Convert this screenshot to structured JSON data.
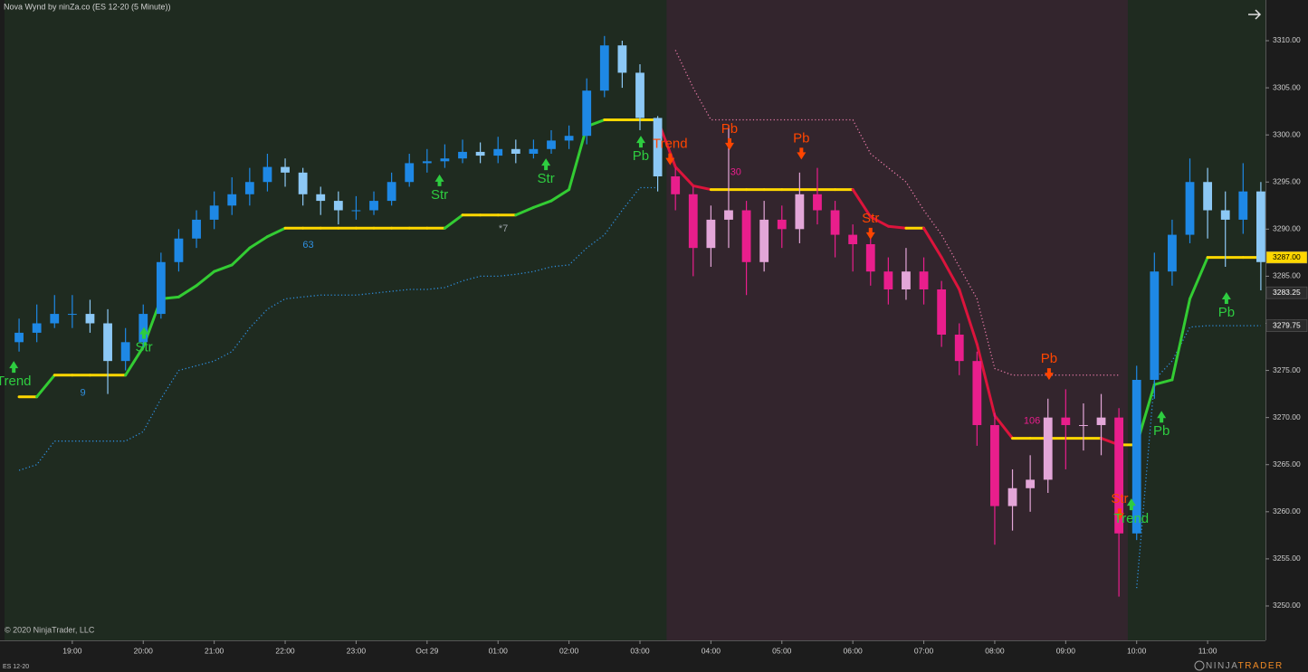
{
  "chart_data": {
    "type": "candlestick",
    "title": "Nova Wynd by ninZa.co (ES 12-20 (5 Minute))",
    "copyright": "© 2020 NinjaTrader, LLC",
    "instrument": "ES 12-20",
    "brand": [
      "NINJA",
      "TRADER"
    ],
    "xlim": [
      -0.82,
      70.26
    ],
    "xticks": [
      {
        "value": 3,
        "label": "19:00"
      },
      {
        "value": 7,
        "label": "20:00"
      },
      {
        "value": 11,
        "label": "21:00"
      },
      {
        "value": 15,
        "label": "22:00"
      },
      {
        "value": 19,
        "label": "23:00"
      },
      {
        "value": 23,
        "label": "Oct 29"
      },
      {
        "value": 27,
        "label": "01:00"
      },
      {
        "value": 31,
        "label": "02:00"
      },
      {
        "value": 35,
        "label": "03:00"
      },
      {
        "value": 39,
        "label": "04:00"
      },
      {
        "value": 43,
        "label": "05:00"
      },
      {
        "value": 47,
        "label": "06:00"
      },
      {
        "value": 51,
        "label": "07:00"
      },
      {
        "value": 55,
        "label": "08:00"
      },
      {
        "value": 59,
        "label": "09:00"
      },
      {
        "value": 63,
        "label": "10:00"
      },
      {
        "value": 67,
        "label": "11:00"
      }
    ],
    "ylim": [
      3246.35,
      3314.32
    ],
    "yticks": [
      {
        "value": 3250,
        "label": "3250.00"
      },
      {
        "value": 3255,
        "label": "3255.00"
      },
      {
        "value": 3260,
        "label": "3260.00"
      },
      {
        "value": 3265,
        "label": "3265.00"
      },
      {
        "value": 3270,
        "label": "3270.00"
      },
      {
        "value": 3275,
        "label": "3275.00"
      },
      {
        "value": 3280,
        "label": "3280.00"
      },
      {
        "value": 3285,
        "label": "3285.00"
      },
      {
        "value": 3290,
        "label": "3290.00"
      },
      {
        "value": 3295,
        "label": "3295.00"
      },
      {
        "value": 3300,
        "label": "3300.00"
      },
      {
        "value": 3305,
        "label": "3305.00"
      },
      {
        "value": 3310,
        "label": "3310.00"
      }
    ],
    "open": [
      3278,
      3279,
      3280,
      3281,
      3281,
      3280,
      3276,
      3278,
      3281,
      3286.5,
      3289,
      3291,
      3292.5,
      3293.7,
      3295,
      3296.6,
      3296,
      3293.7,
      3293,
      3292,
      3292,
      3293,
      3295,
      3297,
      3297.2,
      3297.5,
      3298.2,
      3297.8,
      3298.5,
      3298,
      3298.5,
      3299.4,
      3299.9,
      3304.7,
      3309.5,
      3306.6,
      3301.8,
      3295.6,
      3293.7,
      3288,
      3291,
      3292,
      3286.5,
      3291,
      3290,
      3293.7,
      3292,
      3289.4,
      3288.4,
      3285.5,
      3283.6,
      3285.5,
      3283.6,
      3278.8,
      3276,
      3269.2,
      3260.6,
      3262.5,
      3263.4,
      3270,
      3269.2,
      3269.2,
      3270,
      3257.7,
      3274,
      3285.5,
      3289.4,
      3295,
      3292,
      3291,
      3294
    ],
    "high": [
      3280.5,
      3282,
      3283,
      3283,
      3282.5,
      3281.5,
      3279.5,
      3282,
      3287.5,
      3290,
      3292,
      3294,
      3295.5,
      3296.5,
      3298,
      3297.5,
      3296.5,
      3294.5,
      3294,
      3293.5,
      3294,
      3296,
      3298,
      3298.5,
      3299,
      3299.5,
      3299.2,
      3299.8,
      3299.5,
      3299.5,
      3300.5,
      3301,
      3306,
      3310.5,
      3310,
      3307.5,
      3302,
      3296.5,
      3294.5,
      3292.5,
      3301,
      3293,
      3293,
      3292.5,
      3296,
      3296.5,
      3293,
      3290.5,
      3289,
      3287,
      3288,
      3287,
      3284.5,
      3280,
      3277,
      3270.5,
      3264.5,
      3266,
      3272,
      3273,
      3271.5,
      3272.5,
      3271,
      3275.5,
      3287.5,
      3291,
      3297.5,
      3296.5,
      3294,
      3297,
      3295
    ],
    "low": [
      3277,
      3278,
      3279.5,
      3279.5,
      3279,
      3272.5,
      3275,
      3277.5,
      3280.5,
      3285.5,
      3288,
      3290,
      3291.5,
      3292.5,
      3294,
      3294.5,
      3292.5,
      3291.5,
      3290.5,
      3291,
      3291.5,
      3292.5,
      3294.5,
      3296,
      3296.5,
      3297,
      3297,
      3297,
      3297,
      3297.5,
      3298,
      3298.5,
      3299,
      3304,
      3305,
      3300.5,
      3294,
      3292,
      3285,
      3286,
      3288,
      3283,
      3285.5,
      3288,
      3288.5,
      3290.5,
      3287,
      3285.5,
      3284,
      3282,
      3282.5,
      3282,
      3277.5,
      3274.5,
      3267,
      3256.5,
      3258,
      3260,
      3262,
      3264.5,
      3266.5,
      3266,
      3251,
      3257,
      3272,
      3284,
      3288.5,
      3289,
      3286,
      3289.5,
      3283.5
    ],
    "close": [
      3279,
      3280,
      3281,
      3281,
      3280,
      3276,
      3278,
      3281,
      3286.5,
      3289,
      3291,
      3292.5,
      3293.7,
      3295,
      3296.6,
      3296,
      3293.7,
      3293,
      3292,
      3292,
      3293,
      3295,
      3297,
      3297.2,
      3297.5,
      3298.2,
      3297.8,
      3298.5,
      3298,
      3298.5,
      3299.4,
      3299.9,
      3304.7,
      3309.5,
      3306.6,
      3301.8,
      3295.6,
      3293.7,
      3288,
      3291,
      3292,
      3286.5,
      3291,
      3290,
      3293.7,
      3292,
      3289.4,
      3288.4,
      3285.5,
      3283.6,
      3285.5,
      3283.6,
      3278.8,
      3276,
      3269.2,
      3260.6,
      3262.5,
      3263.4,
      3270,
      3269.2,
      3269.2,
      3270,
      3257.7,
      3274,
      3285.5,
      3289.4,
      3295,
      3292,
      3291,
      3294,
      3286.5
    ],
    "stop_line": [
      3272.2,
      3272.2,
      3274.5,
      3274.5,
      3274.5,
      3274.5,
      3274.5,
      3277.5,
      3282.6,
      3282.8,
      3284,
      3285.5,
      3286.2,
      3288,
      3289.2,
      3290.1,
      3290.1,
      3290.1,
      3290.1,
      3290.1,
      3290.1,
      3290.1,
      3290.1,
      3290.1,
      3290.1,
      3291.5,
      3291.5,
      3291.5,
      3291.5,
      3292.3,
      3293,
      3294.2,
      3300.9,
      3301.6,
      3301.6,
      3301.6,
      3301.6,
      3296.6,
      3294.6,
      3294.2,
      3294.2,
      3294.2,
      3294.2,
      3294.2,
      3294.2,
      3294.2,
      3294.2,
      3294.2,
      3291.3,
      3290.3,
      3290.1,
      3290.1,
      3287,
      3283.6,
      3277.8,
      3270.2,
      3267.8,
      3267.8,
      3267.8,
      3267.8,
      3267.8,
      3267.8,
      3267.1,
      3267.1,
      3273.5,
      3274,
      3282.6,
      3287,
      3287,
      3287,
      3287
    ],
    "upper_band": [
      null,
      null,
      null,
      null,
      null,
      null,
      null,
      null,
      null,
      null,
      null,
      null,
      null,
      null,
      null,
      null,
      null,
      null,
      null,
      null,
      null,
      null,
      null,
      null,
      null,
      null,
      null,
      null,
      null,
      null,
      null,
      null,
      null,
      null,
      null,
      null,
      null,
      3309,
      3305,
      3301.6,
      3301.6,
      3301.6,
      3301.6,
      3301.6,
      3301.6,
      3301.6,
      3301.6,
      3301.6,
      3298,
      3296.5,
      3295,
      3292,
      3289.4,
      3286,
      3282.6,
      3275.2,
      3274.5,
      3274.5,
      3274.5,
      3274.5,
      3274.5,
      3274.5,
      3274.5,
      null,
      null,
      null,
      null,
      null,
      null,
      null,
      null
    ],
    "lower_band": [
      3264.4,
      3265,
      3267.5,
      3267.5,
      3267.5,
      3267.5,
      3267.5,
      3268.5,
      3272,
      3275,
      3275.5,
      3276,
      3277,
      3279.5,
      3281.5,
      3282.6,
      3282.8,
      3283,
      3283,
      3283,
      3283.2,
      3283.4,
      3283.6,
      3283.6,
      3283.8,
      3284.5,
      3285,
      3285,
      3285.2,
      3285.5,
      3286,
      3286.2,
      3288,
      3289.4,
      3292,
      3294.4,
      3294.4,
      null,
      null,
      null,
      null,
      null,
      null,
      null,
      null,
      null,
      null,
      null,
      null,
      null,
      null,
      null,
      null,
      null,
      null,
      null,
      null,
      null,
      null,
      null,
      null,
      null,
      null,
      3251.9,
      3274,
      3276,
      3279.6,
      3279.75,
      3279.75,
      3279.75,
      3279.75
    ],
    "price_markers": [
      {
        "value": 3287,
        "label": "3287.00",
        "color": "#ffd700",
        "text_color": "#000000"
      },
      {
        "value": 3283.25,
        "label": "3283.25",
        "color": "#2b2b2b",
        "text_color": "#ffffff"
      },
      {
        "value": 3279.75,
        "label": "3279.75",
        "color": "#2b2b2b",
        "text_color": "#ffffff"
      }
    ],
    "annotations": [
      {
        "text": "Trend",
        "x": -0.3,
        "y": 3273.8,
        "color": "#2ecc40",
        "arrow": "up"
      },
      {
        "text": "9",
        "x": 3.6,
        "y": 3272.6,
        "color": "#2f8fe0"
      },
      {
        "text": "Str",
        "x": 7.04,
        "y": 3277.4,
        "color": "#2ecc40",
        "arrow": "up"
      },
      {
        "text": "63",
        "x": 16.3,
        "y": 3288.3,
        "color": "#2f8fe0"
      },
      {
        "text": "Str",
        "x": 23.7,
        "y": 3293.6,
        "color": "#2ecc40",
        "arrow": "up"
      },
      {
        "text": "*7",
        "x": 27.3,
        "y": 3290,
        "color": "#9aa0a6"
      },
      {
        "text": "Str",
        "x": 29.7,
        "y": 3295.3,
        "color": "#2ecc40",
        "arrow": "up"
      },
      {
        "text": "Pb",
        "x": 35.05,
        "y": 3297.7,
        "color": "#2ecc40",
        "arrow": "up"
      },
      {
        "text": "Trend",
        "x": 36.7,
        "y": 3299,
        "color": "#ff4500",
        "arrow": "down"
      },
      {
        "text": "Pb",
        "x": 40.05,
        "y": 3300.6,
        "color": "#ff4500",
        "arrow": "down"
      },
      {
        "text": "30",
        "x": 40.4,
        "y": 3296,
        "color": "#e91e8c"
      },
      {
        "text": "Pb",
        "x": 44.1,
        "y": 3299.6,
        "color": "#ff4500",
        "arrow": "down"
      },
      {
        "text": "Str",
        "x": 48,
        "y": 3291.1,
        "color": "#ff4500",
        "arrow": "down"
      },
      {
        "text": "106",
        "x": 57.1,
        "y": 3269.6,
        "color": "#e91e8c"
      },
      {
        "text": "Pb",
        "x": 58.06,
        "y": 3276.2,
        "color": "#ff4500",
        "arrow": "down"
      },
      {
        "text": "Str",
        "x": 62.04,
        "y": 3261.3,
        "color": "#ff4500",
        "arrow": "down"
      },
      {
        "text": "Trend",
        "x": 62.7,
        "y": 3259.2,
        "color": "#2ecc40",
        "arrow": "up"
      },
      {
        "text": "Pb",
        "x": 64.4,
        "y": 3268.5,
        "color": "#2ecc40",
        "arrow": "up"
      },
      {
        "text": "Pb",
        "x": 68.06,
        "y": 3281.1,
        "color": "#2ecc40",
        "arrow": "up"
      }
    ],
    "colors": {
      "up_rising": "#1e88e5",
      "up_falling": "#8cc8f5",
      "down_falling": "#e91e8c",
      "down_rising": "#e3a6d8",
      "stop_up": "#33cc33",
      "stop_down": "#dc143c",
      "stop_flat": "#ffd700",
      "band_upper": "#e87aa8",
      "band_lower": "#2f8fe0",
      "bg_up": "#1f2b20",
      "bg_down": "#33252d"
    }
  }
}
